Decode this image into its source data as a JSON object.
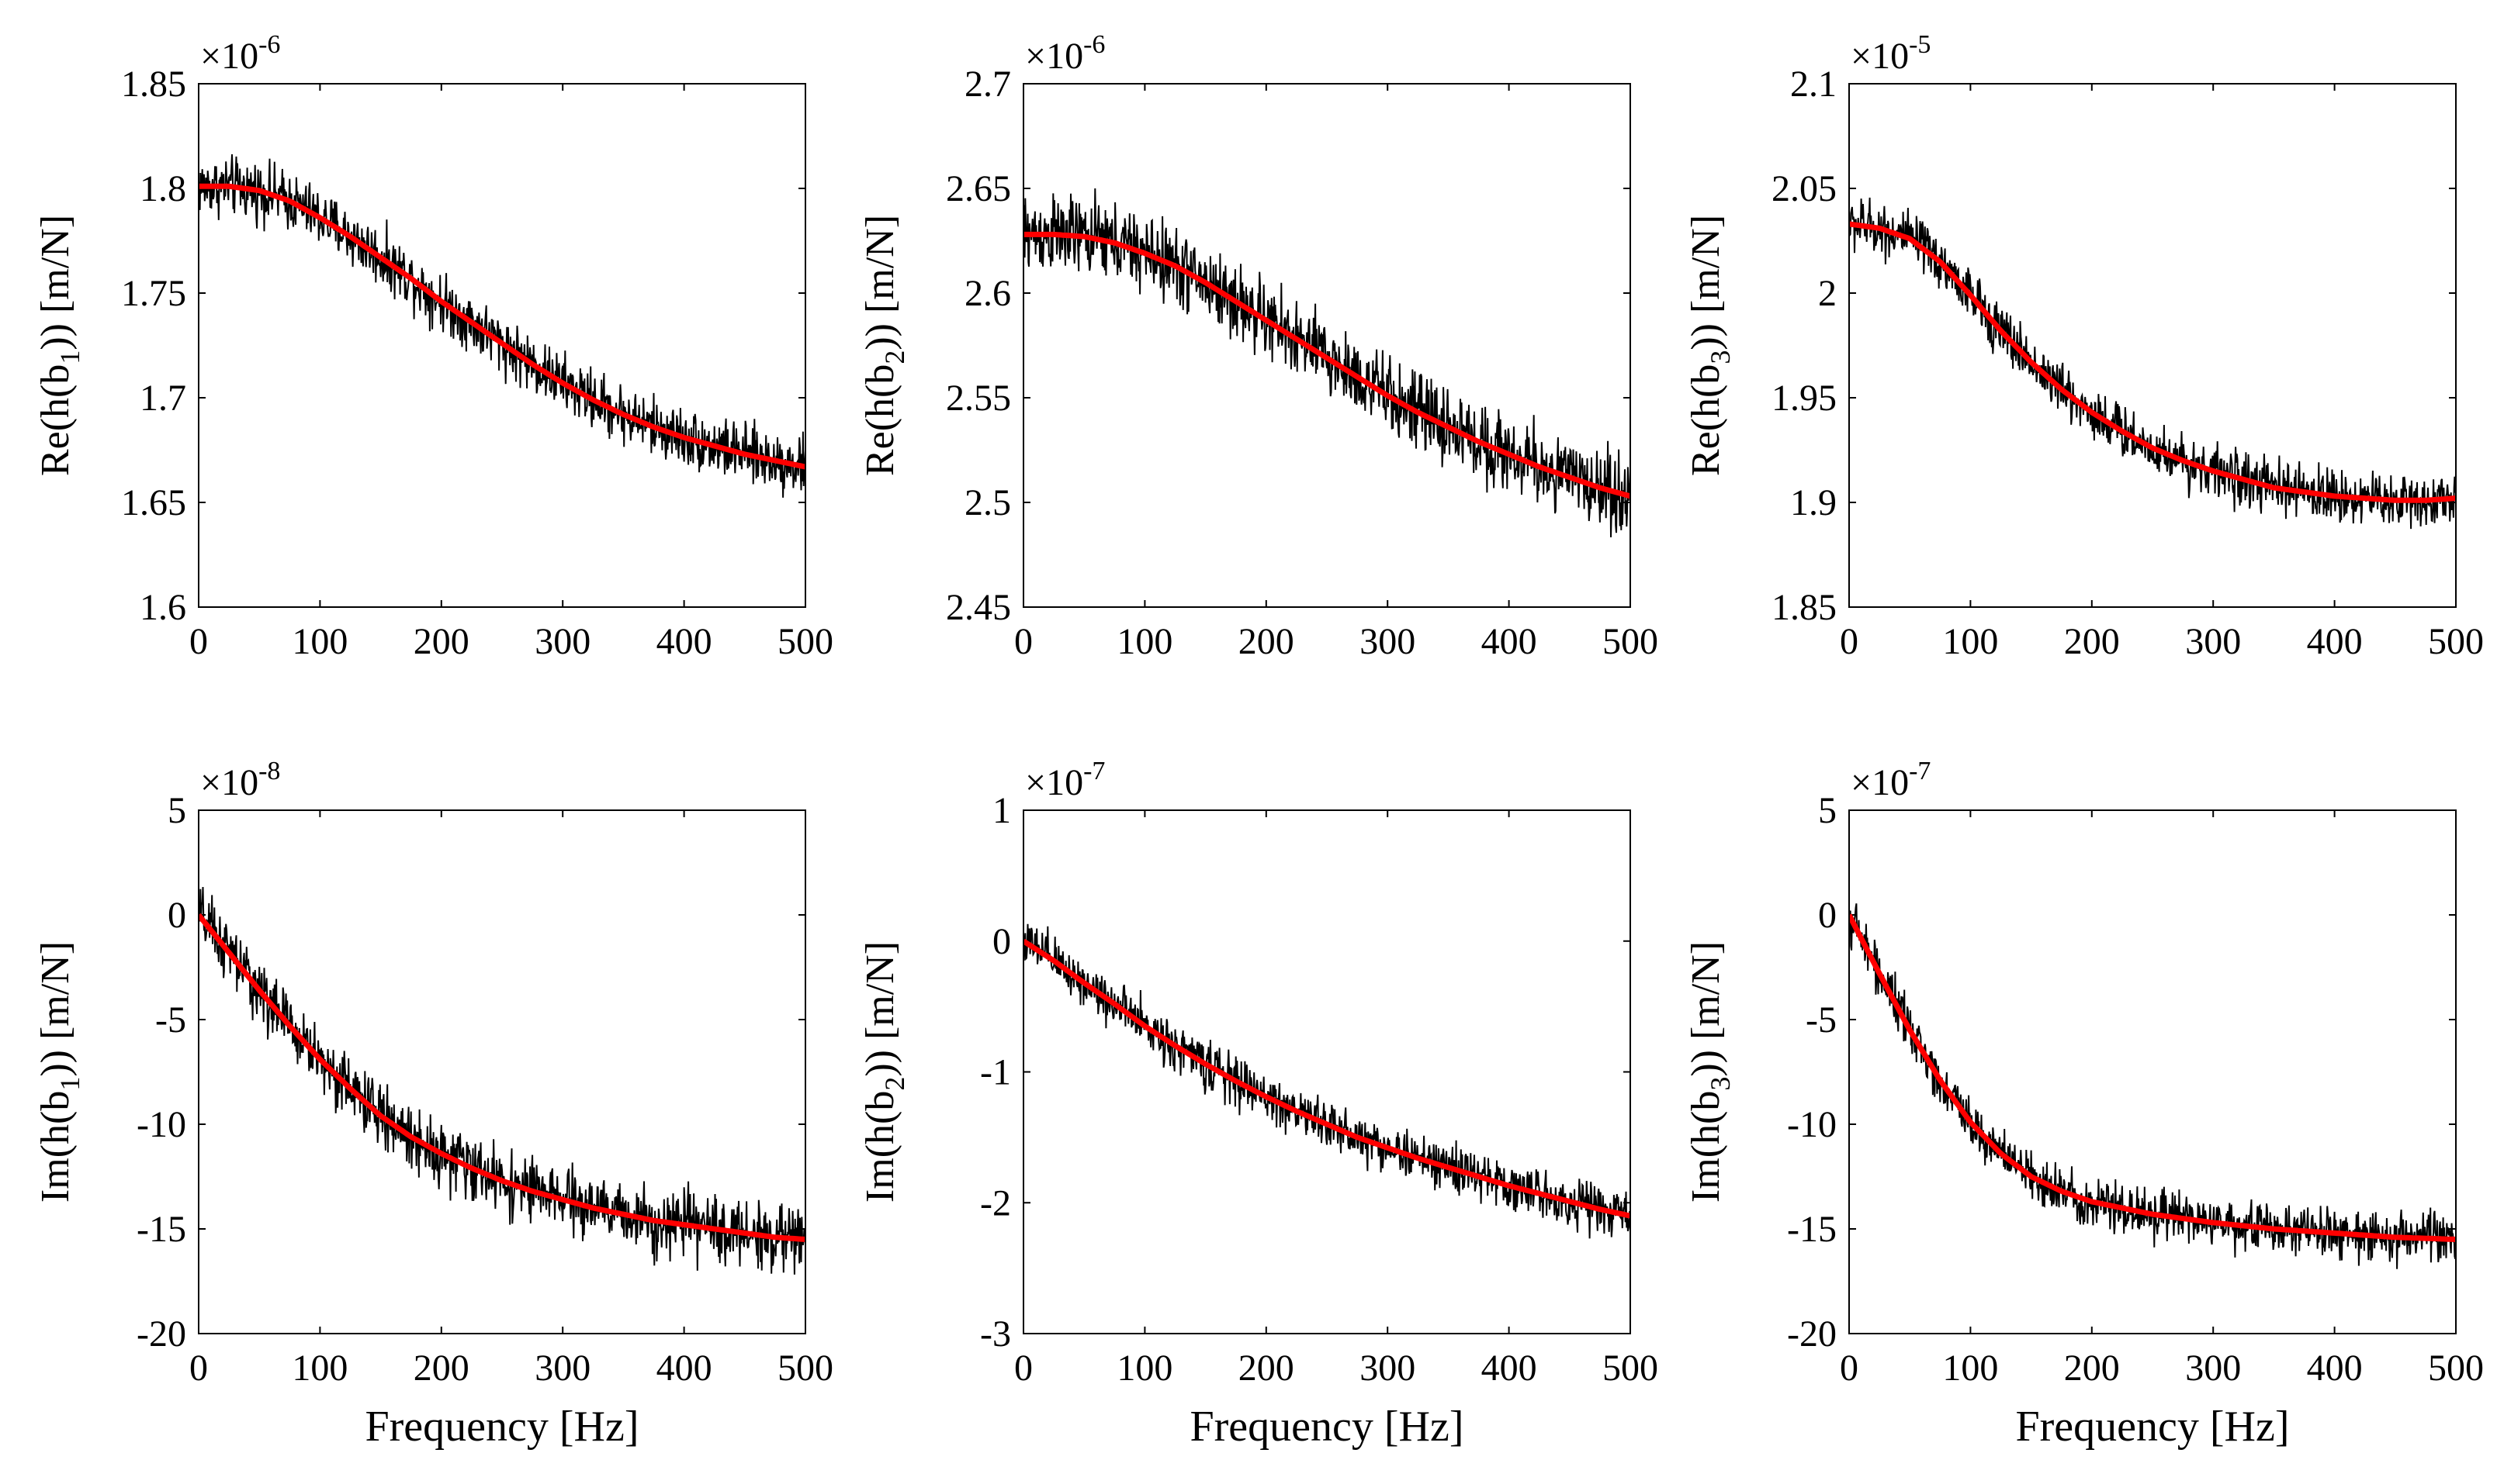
{
  "figure": {
    "colors": {
      "measured": "#000000",
      "fit": "#ff0000",
      "axes": "#000000",
      "background": "#ffffff"
    }
  },
  "chart_data": [
    {
      "type": "line",
      "ylabel_pre": "Re(h(b",
      "ylabel_sub": "1",
      "ylabel_post": ")) [m/N]",
      "xlabel": "",
      "exponent_base": "×10",
      "exponent_power": "-6",
      "xlim": [
        0,
        500
      ],
      "ylim": [
        1.6,
        1.85
      ],
      "xticks": [
        0,
        100,
        200,
        300,
        400,
        500
      ],
      "xtick_labels": [
        "0",
        "100",
        "200",
        "300",
        "400",
        "500"
      ],
      "yticks": [
        1.6,
        1.65,
        1.7,
        1.75,
        1.8,
        1.85
      ],
      "ytick_labels": [
        "1.6",
        "1.65",
        "1.7",
        "1.75",
        "1.8",
        "1.85"
      ],
      "fit": {
        "x": [
          0,
          25,
          50,
          75,
          100,
          125,
          150,
          175,
          200,
          225,
          250,
          275,
          300,
          325,
          350,
          375,
          400,
          425,
          450,
          475,
          500
        ],
        "y": [
          1.801,
          1.801,
          1.799,
          1.794,
          1.786,
          1.777,
          1.767,
          1.757,
          1.746,
          1.736,
          1.726,
          1.716,
          1.707,
          1.699,
          1.692,
          1.686,
          1.681,
          1.677,
          1.673,
          1.67,
          1.667
        ]
      },
      "measured": {
        "noise_amplitude": 0.012
      }
    },
    {
      "type": "line",
      "ylabel_pre": "Re(h(b",
      "ylabel_sub": "2",
      "ylabel_post": ")) [m/N]",
      "xlabel": "",
      "exponent_base": "×10",
      "exponent_power": "-6",
      "xlim": [
        0,
        500
      ],
      "ylim": [
        2.45,
        2.7
      ],
      "xticks": [
        0,
        100,
        200,
        300,
        400,
        500
      ],
      "xtick_labels": [
        "0",
        "100",
        "200",
        "300",
        "400",
        "500"
      ],
      "yticks": [
        2.45,
        2.5,
        2.55,
        2.6,
        2.65,
        2.7
      ],
      "ytick_labels": [
        "2.45",
        "2.5",
        "2.55",
        "2.6",
        "2.65",
        "2.7"
      ],
      "fit": {
        "x": [
          0,
          25,
          50,
          75,
          100,
          125,
          150,
          175,
          200,
          225,
          250,
          275,
          300,
          325,
          350,
          375,
          400,
          425,
          450,
          475,
          500
        ],
        "y": [
          2.628,
          2.628,
          2.627,
          2.624,
          2.619,
          2.613,
          2.605,
          2.596,
          2.587,
          2.578,
          2.569,
          2.56,
          2.551,
          2.543,
          2.536,
          2.529,
          2.523,
          2.517,
          2.512,
          2.507,
          2.503
        ]
      },
      "measured": {
        "noise_amplitude": 0.016
      }
    },
    {
      "type": "line",
      "ylabel_pre": "Re(h(b",
      "ylabel_sub": "3",
      "ylabel_post": ")) [m/N]",
      "xlabel": "",
      "exponent_base": "×10",
      "exponent_power": "-5",
      "xlim": [
        0,
        500
      ],
      "ylim": [
        1.85,
        2.1
      ],
      "xticks": [
        0,
        100,
        200,
        300,
        400,
        500
      ],
      "xtick_labels": [
        "0",
        "100",
        "200",
        "300",
        "400",
        "500"
      ],
      "yticks": [
        1.85,
        1.9,
        1.95,
        2.0,
        2.05,
        2.1
      ],
      "ytick_labels": [
        "1.85",
        "1.9",
        "1.95",
        "2",
        "2.05",
        "2.1"
      ],
      "fit": {
        "x": [
          0,
          25,
          50,
          75,
          100,
          125,
          150,
          175,
          200,
          225,
          250,
          275,
          300,
          325,
          350,
          375,
          400,
          425,
          450,
          475,
          500
        ],
        "y": [
          2.033,
          2.031,
          2.026,
          2.015,
          1.999,
          1.982,
          1.967,
          1.954,
          1.943,
          1.934,
          1.926,
          1.92,
          1.915,
          1.911,
          1.907,
          1.905,
          1.903,
          1.902,
          1.901,
          1.901,
          1.902
        ]
      },
      "measured": {
        "noise_amplitude": 0.011
      }
    },
    {
      "type": "line",
      "ylabel_pre": "Im(h(b",
      "ylabel_sub": "1",
      "ylabel_post": ")) [m/N]",
      "xlabel": "Frequency [Hz]",
      "exponent_base": "×10",
      "exponent_power": "-8",
      "xlim": [
        0,
        500
      ],
      "ylim": [
        -20,
        5
      ],
      "xticks": [
        0,
        100,
        200,
        300,
        400,
        500
      ],
      "xtick_labels": [
        "0",
        "100",
        "200",
        "300",
        "400",
        "500"
      ],
      "yticks": [
        -20,
        -15,
        -10,
        -5,
        0,
        5
      ],
      "ytick_labels": [
        "-20",
        "-15",
        "-10",
        "-5",
        "0",
        "5"
      ],
      "fit": {
        "x": [
          0,
          25,
          50,
          75,
          100,
          125,
          150,
          175,
          200,
          225,
          250,
          275,
          300,
          325,
          350,
          375,
          400,
          425,
          450,
          475,
          500
        ],
        "y": [
          0.0,
          -1.8,
          -3.6,
          -5.3,
          -6.9,
          -8.3,
          -9.6,
          -10.6,
          -11.4,
          -12.1,
          -12.7,
          -13.2,
          -13.6,
          -14.0,
          -14.3,
          -14.6,
          -14.8,
          -15.0,
          -15.2,
          -15.4,
          -15.5
        ]
      },
      "measured": {
        "noise_amplitude": 1.3
      }
    },
    {
      "type": "line",
      "ylabel_pre": "Im(h(b",
      "ylabel_sub": "2",
      "ylabel_post": ")) [m/N]",
      "xlabel": "Frequency [Hz]",
      "exponent_base": "×10",
      "exponent_power": "-7",
      "xlim": [
        0,
        500
      ],
      "ylim": [
        -3,
        1
      ],
      "xticks": [
        0,
        100,
        200,
        300,
        400,
        500
      ],
      "xtick_labels": [
        "0",
        "100",
        "200",
        "300",
        "400",
        "500"
      ],
      "yticks": [
        -3,
        -2,
        -1,
        0,
        1
      ],
      "ytick_labels": [
        "-3",
        "-2",
        "-1",
        "0",
        "1"
      ],
      "fit": {
        "x": [
          0,
          25,
          50,
          75,
          100,
          125,
          150,
          175,
          200,
          225,
          250,
          275,
          300,
          325,
          350,
          375,
          400,
          425,
          450,
          475,
          500
        ],
        "y": [
          0.0,
          -0.15,
          -0.32,
          -0.48,
          -0.65,
          -0.8,
          -0.94,
          -1.07,
          -1.19,
          -1.3,
          -1.4,
          -1.5,
          -1.58,
          -1.66,
          -1.73,
          -1.8,
          -1.87,
          -1.93,
          -1.99,
          -2.05,
          -2.1
        ]
      },
      "measured": {
        "noise_amplitude": 0.16
      }
    },
    {
      "type": "line",
      "ylabel_pre": "Im(h(b",
      "ylabel_sub": "3",
      "ylabel_post": ")) [m/N]",
      "xlabel": "Frequency [Hz]",
      "exponent_base": "×10",
      "exponent_power": "-7",
      "xlim": [
        0,
        500
      ],
      "ylim": [
        -20,
        5
      ],
      "xticks": [
        0,
        100,
        200,
        300,
        400,
        500
      ],
      "xtick_labels": [
        "0",
        "100",
        "200",
        "300",
        "400",
        "500"
      ],
      "yticks": [
        -20,
        -15,
        -10,
        -5,
        0,
        5
      ],
      "ytick_labels": [
        "-20",
        "-15",
        "-10",
        "-5",
        "0",
        "5"
      ],
      "fit": {
        "x": [
          0,
          25,
          50,
          75,
          100,
          125,
          150,
          175,
          200,
          225,
          250,
          275,
          300,
          325,
          350,
          375,
          400,
          425,
          450,
          475,
          500
        ],
        "y": [
          0.0,
          -2.8,
          -5.5,
          -7.9,
          -9.9,
          -11.4,
          -12.5,
          -13.2,
          -13.7,
          -14.0,
          -14.3,
          -14.5,
          -14.7,
          -14.85,
          -15.0,
          -15.1,
          -15.2,
          -15.3,
          -15.4,
          -15.45,
          -15.5
        ]
      },
      "measured": {
        "noise_amplitude": 1.0
      }
    }
  ]
}
